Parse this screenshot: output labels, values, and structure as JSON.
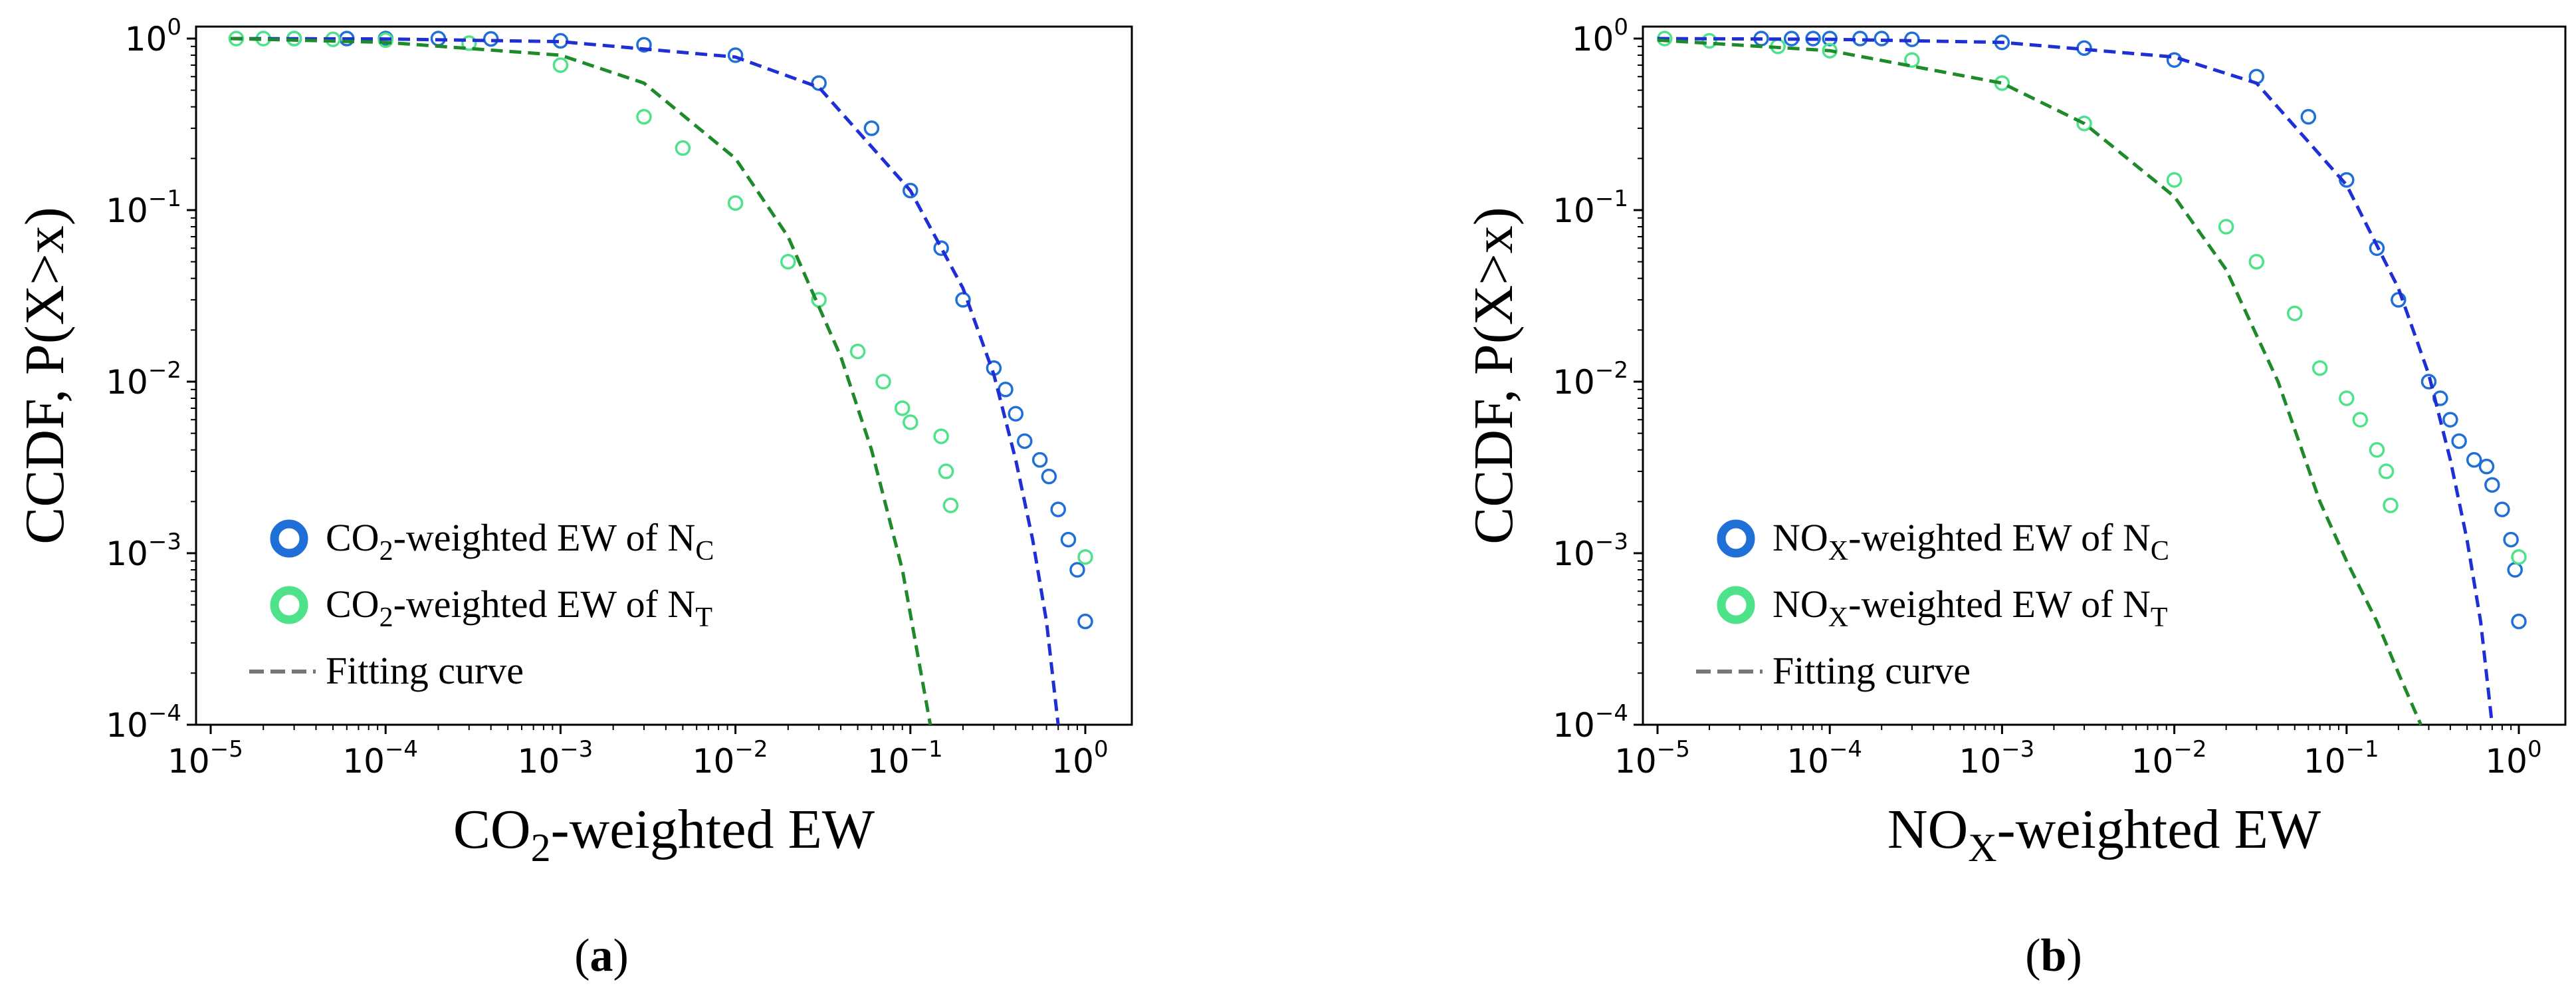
{
  "chart_data": [
    {
      "type": "scatter",
      "panel_label": "a",
      "x_scale": "log",
      "y_scale": "log",
      "xlim": [
        1e-05,
        1.0
      ],
      "ylim": [
        0.0001,
        1.0
      ],
      "xlabel": {
        "pre": "CO",
        "sub": "2",
        "post": "-weighted EW"
      },
      "ylabel": "CCDF, P(X>x)",
      "x_ticks": [
        {
          "base": "10",
          "exp": "−5"
        },
        {
          "base": "10",
          "exp": "−4"
        },
        {
          "base": "10",
          "exp": "−3"
        },
        {
          "base": "10",
          "exp": "−2"
        },
        {
          "base": "10",
          "exp": "−1"
        },
        {
          "base": "10",
          "exp": "0"
        }
      ],
      "y_ticks": [
        {
          "base": "10",
          "exp": "−4"
        },
        {
          "base": "10",
          "exp": "−3"
        },
        {
          "base": "10",
          "exp": "−2"
        },
        {
          "base": "10",
          "exp": "−1"
        },
        {
          "base": "10",
          "exp": "0"
        }
      ],
      "legend_position": "lower-left",
      "series": [
        {
          "name": "CO2-weighted EW of NC",
          "legend": {
            "p1": "CO",
            "s1": "2",
            "p2": "-weighted EW of N",
            "s2": "C"
          },
          "color": "#1f6fd6",
          "marker": "open-circle",
          "points": [
            [
              3e-05,
              1.0
            ],
            [
              6e-05,
              1.0
            ],
            [
              0.0001,
              1.0
            ],
            [
              0.0002,
              1.0
            ],
            [
              0.0004,
              0.995
            ],
            [
              0.001,
              0.97
            ],
            [
              0.003,
              0.92
            ],
            [
              0.01,
              0.8
            ],
            [
              0.03,
              0.55
            ],
            [
              0.06,
              0.3
            ],
            [
              0.1,
              0.13
            ],
            [
              0.15,
              0.06
            ],
            [
              0.2,
              0.03
            ],
            [
              0.3,
              0.012
            ],
            [
              0.35,
              0.009
            ],
            [
              0.4,
              0.0065
            ],
            [
              0.45,
              0.0045
            ],
            [
              0.55,
              0.0035
            ],
            [
              0.62,
              0.0028
            ],
            [
              0.7,
              0.0018
            ],
            [
              0.8,
              0.0012
            ],
            [
              0.9,
              0.0008
            ],
            [
              1.0,
              0.0004
            ]
          ]
        },
        {
          "name": "CO2-weighted EW of NT",
          "legend": {
            "p1": "CO",
            "s1": "2",
            "p2": "-weighted EW of N",
            "s2": "T"
          },
          "color": "#4ee28a",
          "marker": "open-circle",
          "points": [
            [
              1.4e-05,
              1.0
            ],
            [
              2e-05,
              1.0
            ],
            [
              3e-05,
              1.0
            ],
            [
              5e-05,
              0.99
            ],
            [
              0.0001,
              0.98
            ],
            [
              0.0003,
              0.94
            ],
            [
              0.001,
              0.7
            ],
            [
              0.003,
              0.35
            ],
            [
              0.005,
              0.23
            ],
            [
              0.01,
              0.11
            ],
            [
              0.02,
              0.05
            ],
            [
              0.03,
              0.03
            ],
            [
              0.05,
              0.015
            ],
            [
              0.07,
              0.01
            ],
            [
              0.09,
              0.007
            ],
            [
              0.1,
              0.0058
            ],
            [
              0.15,
              0.0048
            ],
            [
              0.16,
              0.003
            ],
            [
              0.17,
              0.0019
            ],
            [
              1.0,
              0.00095
            ]
          ]
        },
        {
          "name": "Fitting curve (NC)",
          "color": "#1f2fd6",
          "line": "dashed",
          "points": [
            [
              1.3e-05,
              1.0
            ],
            [
              0.0001,
              0.995
            ],
            [
              0.001,
              0.96
            ],
            [
              0.01,
              0.78
            ],
            [
              0.03,
              0.52
            ],
            [
              0.1,
              0.13
            ],
            [
              0.2,
              0.035
            ],
            [
              0.3,
              0.011
            ],
            [
              0.4,
              0.0035
            ],
            [
              0.5,
              0.0012
            ],
            [
              0.6,
              0.0004
            ],
            [
              0.7,
              0.0001
            ]
          ]
        },
        {
          "name": "Fitting curve (NT)",
          "color": "#1e8a2a",
          "line": "dashed",
          "points": [
            [
              1.3e-05,
              1.0
            ],
            [
              0.0001,
              0.95
            ],
            [
              0.001,
              0.8
            ],
            [
              0.003,
              0.55
            ],
            [
              0.01,
              0.2
            ],
            [
              0.02,
              0.07
            ],
            [
              0.04,
              0.014
            ],
            [
              0.06,
              0.004
            ],
            [
              0.09,
              0.0008
            ],
            [
              0.13,
              0.0001
            ]
          ]
        }
      ],
      "fit_legend_label": "Fitting curve",
      "fit_legend_color": "#777777"
    },
    {
      "type": "scatter",
      "panel_label": "b",
      "x_scale": "log",
      "y_scale": "log",
      "xlim": [
        1e-05,
        1.0
      ],
      "ylim": [
        0.0001,
        1.0
      ],
      "xlabel": {
        "pre": "NO",
        "sub": "X",
        "post": "-weighted EW"
      },
      "ylabel": "CCDF, P(X>x)",
      "x_ticks": [
        {
          "base": "10",
          "exp": "−5"
        },
        {
          "base": "10",
          "exp": "−4"
        },
        {
          "base": "10",
          "exp": "−3"
        },
        {
          "base": "10",
          "exp": "−2"
        },
        {
          "base": "10",
          "exp": "−1"
        },
        {
          "base": "10",
          "exp": "0"
        }
      ],
      "y_ticks": [
        {
          "base": "10",
          "exp": "−4"
        },
        {
          "base": "10",
          "exp": "−3"
        },
        {
          "base": "10",
          "exp": "−2"
        },
        {
          "base": "10",
          "exp": "−1"
        },
        {
          "base": "10",
          "exp": "0"
        }
      ],
      "legend_position": "lower-left",
      "series": [
        {
          "name": "NOX-weighted EW of NC",
          "legend": {
            "p1": "NO",
            "s1": "X",
            "p2": "-weighted EW of N",
            "s2": "C"
          },
          "color": "#1f6fd6",
          "marker": "open-circle",
          "points": [
            [
              4e-05,
              1.0
            ],
            [
              6e-05,
              1.0
            ],
            [
              8e-05,
              1.0
            ],
            [
              0.0001,
              1.0
            ],
            [
              0.00015,
              1.0
            ],
            [
              0.0002,
              1.0
            ],
            [
              0.0003,
              0.99
            ],
            [
              0.001,
              0.95
            ],
            [
              0.003,
              0.88
            ],
            [
              0.01,
              0.75
            ],
            [
              0.03,
              0.6
            ],
            [
              0.06,
              0.35
            ],
            [
              0.1,
              0.15
            ],
            [
              0.15,
              0.06
            ],
            [
              0.2,
              0.03
            ],
            [
              0.3,
              0.01
            ],
            [
              0.35,
              0.008
            ],
            [
              0.4,
              0.006
            ],
            [
              0.45,
              0.0045
            ],
            [
              0.55,
              0.0035
            ],
            [
              0.65,
              0.0032
            ],
            [
              0.7,
              0.0025
            ],
            [
              0.8,
              0.0018
            ],
            [
              0.9,
              0.0012
            ],
            [
              0.95,
              0.0008
            ],
            [
              1.0,
              0.0004
            ]
          ]
        },
        {
          "name": "NOX-weighted EW of NT",
          "legend": {
            "p1": "NO",
            "s1": "X",
            "p2": "-weighted EW of N",
            "s2": "T"
          },
          "color": "#4ee28a",
          "marker": "open-circle",
          "points": [
            [
              1.1e-05,
              1.0
            ],
            [
              2e-05,
              0.97
            ],
            [
              5e-05,
              0.9
            ],
            [
              0.0001,
              0.85
            ],
            [
              0.0003,
              0.75
            ],
            [
              0.001,
              0.55
            ],
            [
              0.003,
              0.32
            ],
            [
              0.01,
              0.15
            ],
            [
              0.02,
              0.08
            ],
            [
              0.03,
              0.05
            ],
            [
              0.05,
              0.025
            ],
            [
              0.07,
              0.012
            ],
            [
              0.1,
              0.008
            ],
            [
              0.12,
              0.006
            ],
            [
              0.15,
              0.004
            ],
            [
              0.17,
              0.003
            ],
            [
              0.18,
              0.0019
            ],
            [
              1.0,
              0.00095
            ]
          ]
        },
        {
          "name": "Fitting curve (NC)",
          "color": "#1f2fd6",
          "line": "dashed",
          "points": [
            [
              1e-05,
              1.0
            ],
            [
              0.0001,
              0.99
            ],
            [
              0.001,
              0.95
            ],
            [
              0.01,
              0.78
            ],
            [
              0.03,
              0.55
            ],
            [
              0.1,
              0.14
            ],
            [
              0.2,
              0.035
            ],
            [
              0.3,
              0.011
            ],
            [
              0.4,
              0.0035
            ],
            [
              0.5,
              0.0012
            ],
            [
              0.6,
              0.0004
            ],
            [
              0.7,
              0.0001
            ]
          ]
        },
        {
          "name": "Fitting curve (NT)",
          "color": "#1e8a2a",
          "line": "dashed",
          "points": [
            [
              1e-05,
              0.98
            ],
            [
              0.0001,
              0.85
            ],
            [
              0.001,
              0.55
            ],
            [
              0.003,
              0.32
            ],
            [
              0.01,
              0.12
            ],
            [
              0.02,
              0.045
            ],
            [
              0.04,
              0.01
            ],
            [
              0.07,
              0.002
            ],
            [
              0.1,
              0.0009
            ],
            [
              0.15,
              0.0004
            ],
            [
              0.2,
              0.0002
            ],
            [
              0.27,
              0.0001
            ]
          ]
        }
      ],
      "fit_legend_label": "Fitting curve",
      "fit_legend_color": "#777777"
    }
  ]
}
